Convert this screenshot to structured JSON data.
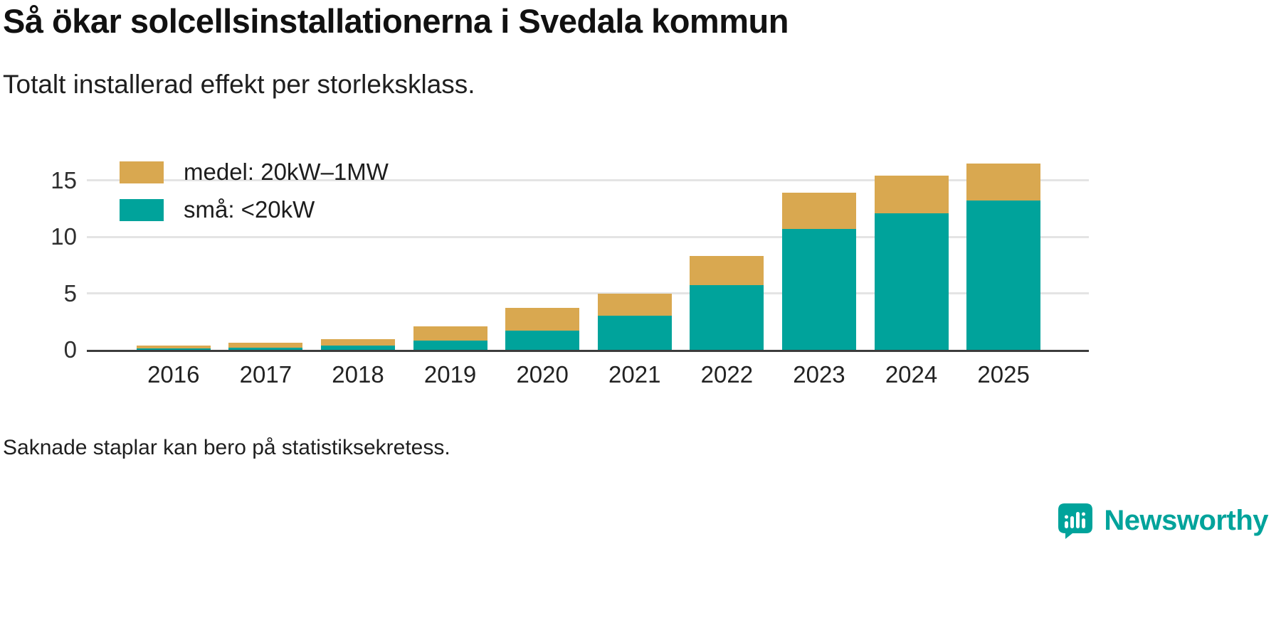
{
  "header": {
    "title": "Så ökar solcellsinstallationerna i Svedala kommun",
    "subtitle": "Totalt installerad effekt per storleksklass."
  },
  "chart_data": {
    "type": "bar",
    "stacked": true,
    "categories": [
      "2016",
      "2017",
      "2018",
      "2019",
      "2020",
      "2021",
      "2022",
      "2023",
      "2024",
      "2025"
    ],
    "series": [
      {
        "name": "små: <20kW",
        "color": "#00a39b",
        "values": [
          0.1,
          0.2,
          0.35,
          0.8,
          1.7,
          3.0,
          5.7,
          10.7,
          12.1,
          13.2
        ]
      },
      {
        "name": "medel: 20kW–1MW",
        "color": "#d9a850",
        "values": [
          0.25,
          0.4,
          0.6,
          1.3,
          2.0,
          2.0,
          2.6,
          3.2,
          3.3,
          3.3
        ]
      }
    ],
    "legend_order": [
      "medel: 20kW–1MW",
      "små: <20kW"
    ],
    "legend_position": "top-left",
    "xlabel": "",
    "ylabel": "",
    "yticks": [
      0,
      5,
      10,
      15
    ],
    "ylim": [
      0,
      17
    ],
    "grid": "horizontal",
    "gridline_color": "#e4e4e4",
    "axis_line_color": "#3c3c3c"
  },
  "footer": {
    "note": "Saknade staplar kan bero på statistiksekretess."
  },
  "brand": {
    "name": "Newsworthy",
    "color": "#00a39b"
  }
}
